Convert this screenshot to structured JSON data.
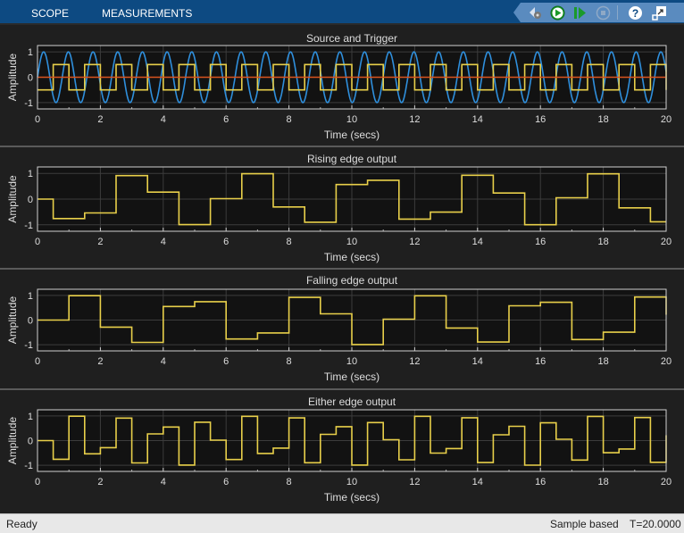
{
  "header": {
    "tabs": [
      {
        "label": "SCOPE"
      },
      {
        "label": "MEASUREMENTS"
      }
    ],
    "toolbar": [
      "settings-icon",
      "run-icon",
      "step-forward-icon",
      "stop-icon",
      "help-icon",
      "undock-icon"
    ],
    "colors": {
      "header": "#0d4a82",
      "toolbar": "#5a8bbf"
    }
  },
  "status": {
    "left": "Ready",
    "mode": "Sample based",
    "time": "T=20.0000"
  },
  "chart_data": [
    {
      "type": "line",
      "title": "Source and Trigger",
      "xlabel": "Time (secs)",
      "ylabel": "Amplitude",
      "xlim": [
        0,
        20
      ],
      "ylim": [
        -1.25,
        1.25
      ],
      "xticks": [
        "0",
        "2",
        "4",
        "6",
        "8",
        "10",
        "12",
        "14",
        "16",
        "18",
        "20"
      ],
      "yticks": [
        "1",
        "0",
        "-1"
      ],
      "grid": true,
      "series": [
        {
          "kind": "sine",
          "amplitude": 1,
          "angular_frequency": 8,
          "color": "#2f8fdc"
        },
        {
          "kind": "square",
          "amplitude": 0.5,
          "period": 1,
          "high_from": 0.5,
          "high_to": 1.0,
          "color": "#e8cf4a"
        },
        {
          "kind": "constant",
          "value": 0,
          "color": "#d9531e"
        }
      ]
    },
    {
      "type": "line",
      "title": "Rising edge output",
      "xlabel": "Time (secs)",
      "ylabel": "Amplitude",
      "xlim": [
        0,
        20
      ],
      "ylim": [
        -1.25,
        1.25
      ],
      "xticks": [
        "0",
        "2",
        "4",
        "6",
        "8",
        "10",
        "12",
        "14",
        "16",
        "18",
        "20"
      ],
      "yticks": [
        "1",
        "0",
        "-1"
      ],
      "grid": true,
      "series": [
        {
          "kind": "step",
          "color": "#e8cf4a",
          "t": [
            0,
            0.5,
            1.5,
            2.5,
            3.5,
            4.5,
            5.5,
            6.5,
            7.5,
            8.5,
            9.5,
            10.5,
            11.5,
            12.5,
            13.5,
            14.5,
            15.5,
            16.5,
            17.5,
            18.5,
            19.5
          ],
          "y": [
            0,
            -0.757,
            -0.537,
            0.913,
            0.271,
            -0.992,
            0.018,
            0.987,
            -0.305,
            -0.898,
            0.566,
            0.733,
            -0.779,
            -0.506,
            0.927,
            0.237,
            -0.996,
            0.053,
            0.981,
            -0.339,
            -0.882
          ]
        }
      ]
    },
    {
      "type": "line",
      "title": "Falling edge output",
      "xlabel": "Time (secs)",
      "ylabel": "Amplitude",
      "xlim": [
        0,
        20
      ],
      "ylim": [
        -1.25,
        1.25
      ],
      "xticks": [
        "0",
        "2",
        "4",
        "6",
        "8",
        "10",
        "12",
        "14",
        "16",
        "18",
        "20"
      ],
      "yticks": [
        "1",
        "0",
        "-1"
      ],
      "grid": true,
      "series": [
        {
          "kind": "step",
          "color": "#e8cf4a",
          "t": [
            0,
            1,
            2,
            3,
            4,
            5,
            6,
            7,
            8,
            9,
            10,
            11,
            12,
            13,
            14,
            15,
            16,
            17,
            18,
            19,
            20
          ],
          "y": [
            0,
            0.989,
            -0.288,
            -0.906,
            0.551,
            0.745,
            -0.768,
            -0.522,
            0.92,
            0.254,
            -0.994,
            0.035,
            0.984,
            -0.322,
            -0.89,
            0.581,
            0.721,
            -0.79,
            -0.491,
            0.933,
            0.219
          ]
        }
      ]
    },
    {
      "type": "line",
      "title": "Either edge output",
      "xlabel": "Time (secs)",
      "ylabel": "Amplitude",
      "xlim": [
        0,
        20
      ],
      "ylim": [
        -1.25,
        1.25
      ],
      "xticks": [
        "0",
        "2",
        "4",
        "6",
        "8",
        "10",
        "12",
        "14",
        "16",
        "18",
        "20"
      ],
      "yticks": [
        "1",
        "0",
        "-1"
      ],
      "grid": true,
      "series": [
        {
          "kind": "step",
          "color": "#e8cf4a",
          "t": [
            0,
            0.5,
            1,
            1.5,
            2,
            2.5,
            3,
            3.5,
            4,
            4.5,
            5,
            5.5,
            6,
            6.5,
            7,
            7.5,
            8,
            8.5,
            9,
            9.5,
            10,
            10.5,
            11,
            11.5,
            12,
            12.5,
            13,
            13.5,
            14,
            14.5,
            15,
            15.5,
            16,
            16.5,
            17,
            17.5,
            18,
            18.5,
            19,
            19.5,
            20
          ],
          "y": [
            0,
            -0.757,
            0.989,
            -0.537,
            -0.288,
            0.913,
            -0.906,
            0.271,
            0.551,
            -0.992,
            0.745,
            0.018,
            -0.768,
            0.987,
            -0.522,
            -0.305,
            0.92,
            -0.898,
            0.254,
            0.566,
            -0.994,
            0.733,
            0.035,
            -0.779,
            0.984,
            -0.506,
            -0.322,
            0.927,
            -0.89,
            0.237,
            0.581,
            -0.996,
            0.721,
            0.053,
            -0.79,
            0.981,
            -0.491,
            -0.339,
            0.933,
            -0.882,
            0.219
          ]
        }
      ]
    }
  ]
}
